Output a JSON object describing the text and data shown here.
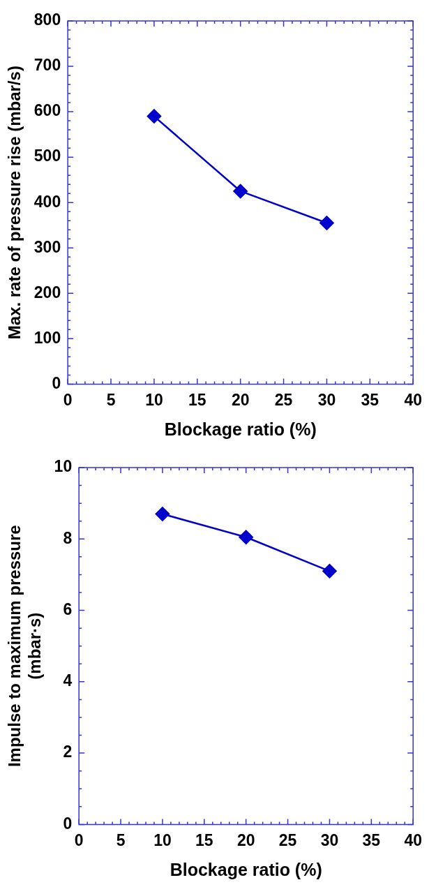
{
  "chart_data": [
    {
      "type": "line",
      "xlabel": "Blockage ratio (%)",
      "ylabel": "Max. rate of pressure rise (mbar/s)",
      "marker": "diamond",
      "line_style": "solid",
      "grid": false,
      "legend": false,
      "x": [
        10,
        20,
        30
      ],
      "series": [
        {
          "color": "#0000cc",
          "values": [
            590,
            425,
            355
          ]
        }
      ],
      "xlim": [
        0,
        40
      ],
      "xticks": [
        0,
        {
          "value": 1,
          "label": null
        },
        {
          "value": 2,
          "label": null
        },
        {
          "value": 3,
          "label": null
        },
        {
          "value": 4,
          "label": null
        },
        5,
        {
          "value": 6,
          "label": null
        },
        {
          "value": 7,
          "label": null
        },
        {
          "value": 8,
          "label": null
        },
        {
          "value": 9,
          "label": null
        },
        10,
        {
          "value": 11,
          "label": null
        },
        {
          "value": 12,
          "label": null
        },
        {
          "value": 13,
          "label": null
        },
        {
          "value": 14,
          "label": null
        },
        15,
        {
          "value": 16,
          "label": null
        },
        {
          "value": 17,
          "label": null
        },
        {
          "value": 18,
          "label": null
        },
        {
          "value": 19,
          "label": null
        },
        20,
        {
          "value": 21,
          "label": null
        },
        {
          "value": 22,
          "label": null
        },
        {
          "value": 23,
          "label": null
        },
        {
          "value": 24,
          "label": null
        },
        25,
        {
          "value": 26,
          "label": null
        },
        {
          "value": 27,
          "label": null
        },
        {
          "value": 28,
          "label": null
        },
        {
          "value": 29,
          "label": null
        },
        30,
        {
          "value": 31,
          "label": null
        },
        {
          "value": 32,
          "label": null
        },
        {
          "value": 33,
          "label": null
        },
        {
          "value": 34,
          "label": null
        },
        35,
        {
          "value": 36,
          "label": null
        },
        {
          "value": 37,
          "label": null
        },
        {
          "value": 38,
          "label": null
        },
        {
          "value": 39,
          "label": null
        },
        40
      ],
      "ylim": [
        0,
        800
      ],
      "yticks": [
        0,
        {
          "value": 20,
          "label": null
        },
        {
          "value": 40,
          "label": null
        },
        {
          "value": 60,
          "label": null
        },
        {
          "value": 80,
          "label": null
        },
        100,
        {
          "value": 120,
          "label": null
        },
        {
          "value": 140,
          "label": null
        },
        {
          "value": 160,
          "label": null
        },
        {
          "value": 180,
          "label": null
        },
        200,
        {
          "value": 220,
          "label": null
        },
        {
          "value": 240,
          "label": null
        },
        {
          "value": 260,
          "label": null
        },
        {
          "value": 280,
          "label": null
        },
        300,
        {
          "value": 320,
          "label": null
        },
        {
          "value": 340,
          "label": null
        },
        {
          "value": 360,
          "label": null
        },
        {
          "value": 380,
          "label": null
        },
        400,
        {
          "value": 420,
          "label": null
        },
        {
          "value": 440,
          "label": null
        },
        {
          "value": 460,
          "label": null
        },
        {
          "value": 480,
          "label": null
        },
        500,
        {
          "value": 520,
          "label": null
        },
        {
          "value": 540,
          "label": null
        },
        {
          "value": 560,
          "label": null
        },
        {
          "value": 580,
          "label": null
        },
        600,
        {
          "value": 620,
          "label": null
        },
        {
          "value": 640,
          "label": null
        },
        {
          "value": 660,
          "label": null
        },
        {
          "value": 680,
          "label": null
        },
        700,
        {
          "value": 720,
          "label": null
        },
        {
          "value": 740,
          "label": null
        },
        {
          "value": 760,
          "label": null
        },
        {
          "value": 780,
          "label": null
        },
        800
      ]
    },
    {
      "type": "line",
      "xlabel": "Blockage ratio (%)",
      "ylabel": "Impulse to maximum pressure\n(mbar·s)",
      "marker": "diamond",
      "line_style": "solid",
      "grid": false,
      "legend": false,
      "x": [
        10,
        20,
        30
      ],
      "series": [
        {
          "color": "#0000cc",
          "values": [
            8.7,
            8.05,
            7.1
          ]
        }
      ],
      "xlim": [
        0,
        40
      ],
      "xticks": [
        0,
        {
          "value": 1,
          "label": null
        },
        {
          "value": 2,
          "label": null
        },
        {
          "value": 3,
          "label": null
        },
        {
          "value": 4,
          "label": null
        },
        5,
        {
          "value": 6,
          "label": null
        },
        {
          "value": 7,
          "label": null
        },
        {
          "value": 8,
          "label": null
        },
        {
          "value": 9,
          "label": null
        },
        10,
        {
          "value": 11,
          "label": null
        },
        {
          "value": 12,
          "label": null
        },
        {
          "value": 13,
          "label": null
        },
        {
          "value": 14,
          "label": null
        },
        15,
        {
          "value": 16,
          "label": null
        },
        {
          "value": 17,
          "label": null
        },
        {
          "value": 18,
          "label": null
        },
        {
          "value": 19,
          "label": null
        },
        20,
        {
          "value": 21,
          "label": null
        },
        {
          "value": 22,
          "label": null
        },
        {
          "value": 23,
          "label": null
        },
        {
          "value": 24,
          "label": null
        },
        25,
        {
          "value": 26,
          "label": null
        },
        {
          "value": 27,
          "label": null
        },
        {
          "value": 28,
          "label": null
        },
        {
          "value": 29,
          "label": null
        },
        30,
        {
          "value": 31,
          "label": null
        },
        {
          "value": 32,
          "label": null
        },
        {
          "value": 33,
          "label": null
        },
        {
          "value": 34,
          "label": null
        },
        35,
        {
          "value": 36,
          "label": null
        },
        {
          "value": 37,
          "label": null
        },
        {
          "value": 38,
          "label": null
        },
        {
          "value": 39,
          "label": null
        },
        40
      ],
      "ylim": [
        0,
        10
      ],
      "yticks": [
        0,
        {
          "value": 0.5,
          "label": null
        },
        {
          "value": 1,
          "label": null
        },
        {
          "value": 1.5,
          "label": null
        },
        2,
        {
          "value": 2.5,
          "label": null
        },
        {
          "value": 3,
          "label": null
        },
        {
          "value": 3.5,
          "label": null
        },
        4,
        {
          "value": 4.5,
          "label": null
        },
        {
          "value": 5,
          "label": null
        },
        {
          "value": 5.5,
          "label": null
        },
        6,
        {
          "value": 6.5,
          "label": null
        },
        {
          "value": 7,
          "label": null
        },
        {
          "value": 7.5,
          "label": null
        },
        8,
        {
          "value": 8.5,
          "label": null
        },
        {
          "value": 9,
          "label": null
        },
        {
          "value": 9.5,
          "label": null
        },
        10
      ]
    }
  ]
}
